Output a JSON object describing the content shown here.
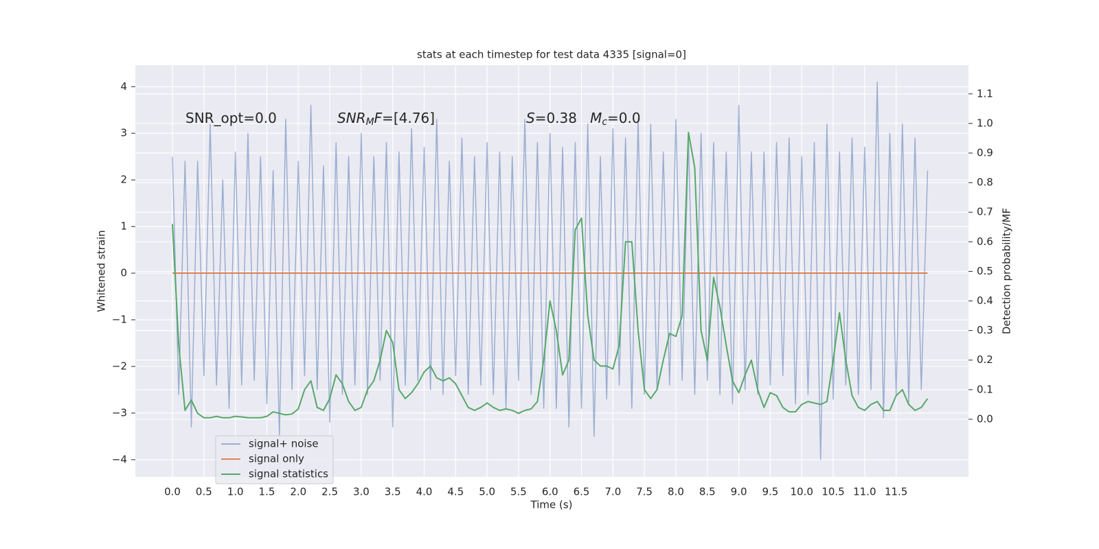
{
  "chart_data": {
    "type": "line",
    "title": "stats at each timestep for test data 4335 [signal=0]",
    "xlabel": "Time (s)",
    "ylabel": "Whitened strain",
    "y2label": "Detection probability/MF",
    "grid": true,
    "legend": "lower left",
    "annotations": [
      [
        {
          "text": "SNR_opt=0.0",
          "style": "normal"
        }
      ],
      [
        {
          "text": "SNR",
          "style": "italic"
        },
        {
          "text": "M",
          "style": "sub"
        },
        {
          "text": "F",
          "style": "italic"
        },
        {
          "text": "=[4.76]",
          "style": "normal"
        }
      ],
      [
        {
          "text": "S",
          "style": "italic"
        },
        {
          "text": "=0.38   ",
          "style": "normal"
        },
        {
          "text": "M",
          "style": "italic"
        },
        {
          "text": "c",
          "style": "sub"
        },
        {
          "text": "=0.0",
          "style": "normal"
        }
      ]
    ],
    "xlim": [
      -0.59,
      12.65
    ],
    "ylim": [
      -4.37,
      4.46
    ],
    "y2lim": [
      -0.195,
      1.197
    ],
    "xticks": [
      {
        "value": 0,
        "label": "0.0"
      },
      0.5,
      {
        "value": 1,
        "label": "1.0"
      },
      1.5,
      {
        "value": 2,
        "label": "2.0"
      },
      2.5,
      {
        "value": 3,
        "label": "3.0"
      },
      3.5,
      {
        "value": 4,
        "label": "4.0"
      },
      4.5,
      {
        "value": 5,
        "label": "5.0"
      },
      5.5,
      {
        "value": 6,
        "label": "6.0"
      },
      6.5,
      {
        "value": 7,
        "label": "7.0"
      },
      7.5,
      {
        "value": 8,
        "label": "8.0"
      },
      8.5,
      {
        "value": 9,
        "label": "9.0"
      },
      9.5,
      {
        "value": 10,
        "label": "10.0"
      },
      10.5,
      {
        "value": 11,
        "label": "11.0"
      },
      11.5
    ],
    "yticks": [
      {
        "value": -4,
        "label": "−4"
      },
      {
        "value": -3,
        "label": "−3"
      },
      {
        "value": -2,
        "label": "−2"
      },
      {
        "value": -1,
        "label": "−1"
      },
      0,
      1,
      2,
      3,
      4
    ],
    "y2ticks": [
      {
        "value": 0,
        "label": "0.0"
      },
      0.1,
      0.2,
      0.3,
      0.4,
      0.5,
      0.6,
      0.7,
      0.8,
      0.9,
      {
        "value": 1,
        "label": "1.0"
      },
      1.1
    ],
    "x": [
      0,
      0.1,
      0.2,
      0.3,
      0.4,
      0.5,
      0.6,
      0.7,
      0.8,
      0.9,
      1,
      1.1,
      1.2,
      1.3,
      1.4,
      1.5,
      1.6,
      1.7,
      1.8,
      1.9,
      2,
      2.1,
      2.2,
      2.3,
      2.4,
      2.5,
      2.6,
      2.7,
      2.8,
      2.9,
      3,
      3.1,
      3.2,
      3.3,
      3.4,
      3.5,
      3.6,
      3.7,
      3.8,
      3.9,
      4,
      4.1,
      4.2,
      4.3,
      4.4,
      4.5,
      4.6,
      4.7,
      4.8,
      4.9,
      5,
      5.1,
      5.2,
      5.3,
      5.4,
      5.5,
      5.6,
      5.7,
      5.8,
      5.9,
      6,
      6.1,
      6.2,
      6.3,
      6.4,
      6.5,
      6.6,
      6.7,
      6.8,
      6.9,
      7,
      7.1,
      7.2,
      7.3,
      7.4,
      7.5,
      7.6,
      7.7,
      7.8,
      7.9,
      8,
      8.1,
      8.2,
      8.3,
      8.4,
      8.5,
      8.6,
      8.7,
      8.8,
      8.9,
      9,
      9.1,
      9.2,
      9.3,
      9.4,
      9.5,
      9.6,
      9.7,
      9.8,
      9.9,
      10,
      10.1,
      10.2,
      10.3,
      10.4,
      10.5,
      10.6,
      10.7,
      10.8,
      10.9,
      11,
      11.1,
      11.2,
      11.3,
      11.4,
      11.5,
      11.6,
      11.7,
      11.8,
      11.9,
      12
    ],
    "series": [
      {
        "name": "signal+ noise",
        "color": "#4c72b0",
        "opacity": 0.5,
        "axis": "y",
        "values": [
          2.5,
          -2.6,
          2.4,
          -3.3,
          2.4,
          -2.2,
          3.2,
          -2.4,
          2.0,
          -2.9,
          2.6,
          -2.4,
          3.0,
          -2.3,
          2.5,
          -2.8,
          2.2,
          -3.5,
          3.3,
          -2.5,
          2.4,
          -2.2,
          3.6,
          -2.5,
          2.3,
          -3.2,
          2.8,
          -2.6,
          2.5,
          -2.4,
          3.0,
          -2.6,
          2.5,
          -2.3,
          2.8,
          -3.3,
          2.6,
          -2.4,
          3.1,
          -2.3,
          2.7,
          -2.5,
          3.3,
          -2.6,
          2.4,
          -2.2,
          2.9,
          -2.6,
          2.5,
          -2.4,
          2.8,
          -2.6,
          2.6,
          -2.9,
          2.5,
          -2.3,
          3.3,
          -2.6,
          2.8,
          -2.9,
          3.0,
          -2.9,
          2.7,
          -3.3,
          2.8,
          -2.9,
          3.2,
          -3.5,
          2.5,
          -2.7,
          3.1,
          -2.4,
          2.9,
          -2.9,
          3.3,
          -2.6,
          3.2,
          -2.5,
          2.6,
          -2.4,
          3.3,
          -2.3,
          2.9,
          -2.6,
          3.0,
          -2.3,
          2.8,
          -2.6,
          2.6,
          -2.8,
          3.6,
          -2.5,
          2.6,
          -2.6,
          2.6,
          -2.4,
          2.8,
          -2.2,
          2.9,
          -2.8,
          2.5,
          -2.6,
          2.8,
          -4.0,
          3.2,
          -2.7,
          2.6,
          -2.4,
          2.9,
          -2.6,
          2.7,
          -2.5,
          4.1,
          -3.1,
          3.0,
          -2.6,
          3.2,
          -2.8,
          2.9,
          -2.5,
          2.2
        ]
      },
      {
        "name": "signal only",
        "color": "#dd8452",
        "opacity": 1,
        "axis": "y",
        "values": [
          0,
          0,
          0,
          0,
          0,
          0,
          0,
          0,
          0,
          0,
          0,
          0,
          0,
          0,
          0,
          0,
          0,
          0,
          0,
          0,
          0,
          0,
          0,
          0,
          0,
          0,
          0,
          0,
          0,
          0,
          0,
          0,
          0,
          0,
          0,
          0,
          0,
          0,
          0,
          0,
          0,
          0,
          0,
          0,
          0,
          0,
          0,
          0,
          0,
          0,
          0,
          0,
          0,
          0,
          0,
          0,
          0,
          0,
          0,
          0,
          0,
          0,
          0,
          0,
          0,
          0,
          0,
          0,
          0,
          0,
          0,
          0,
          0,
          0,
          0,
          0,
          0,
          0,
          0,
          0,
          0,
          0,
          0,
          0,
          0,
          0,
          0,
          0,
          0,
          0,
          0,
          0,
          0,
          0,
          0,
          0,
          0,
          0,
          0,
          0,
          0,
          0,
          0,
          0,
          0,
          0,
          0,
          0,
          0,
          0,
          0,
          0,
          0,
          0,
          0,
          0,
          0,
          0,
          0,
          0,
          0
        ]
      },
      {
        "name": "signal statistics",
        "color": "#55a868",
        "opacity": 1,
        "axis": "y2",
        "values": [
          0.66,
          0.25,
          0.03,
          0.065,
          0.02,
          0.005,
          0.005,
          0.01,
          0.005,
          0.005,
          0.01,
          0.008,
          0.005,
          0.005,
          0.005,
          0.01,
          0.025,
          0.02,
          0.015,
          0.018,
          0.035,
          0.1,
          0.13,
          0.04,
          0.03,
          0.07,
          0.15,
          0.12,
          0.06,
          0.03,
          0.04,
          0.1,
          0.13,
          0.2,
          0.3,
          0.26,
          0.1,
          0.07,
          0.09,
          0.12,
          0.16,
          0.18,
          0.14,
          0.13,
          0.14,
          0.12,
          0.08,
          0.04,
          0.03,
          0.04,
          0.055,
          0.04,
          0.03,
          0.035,
          0.03,
          0.02,
          0.03,
          0.035,
          0.06,
          0.2,
          0.4,
          0.3,
          0.15,
          0.2,
          0.64,
          0.68,
          0.35,
          0.2,
          0.18,
          0.18,
          0.17,
          0.25,
          0.6,
          0.6,
          0.3,
          0.1,
          0.07,
          0.1,
          0.2,
          0.29,
          0.28,
          0.35,
          0.97,
          0.85,
          0.3,
          0.2,
          0.48,
          0.38,
          0.25,
          0.13,
          0.09,
          0.15,
          0.2,
          0.1,
          0.04,
          0.09,
          0.08,
          0.04,
          0.025,
          0.025,
          0.05,
          0.06,
          0.055,
          0.05,
          0.06,
          0.2,
          0.36,
          0.2,
          0.08,
          0.04,
          0.03,
          0.05,
          0.06,
          0.03,
          0.03,
          0.08,
          0.1,
          0.05,
          0.03,
          0.04,
          0.07
        ]
      }
    ]
  }
}
